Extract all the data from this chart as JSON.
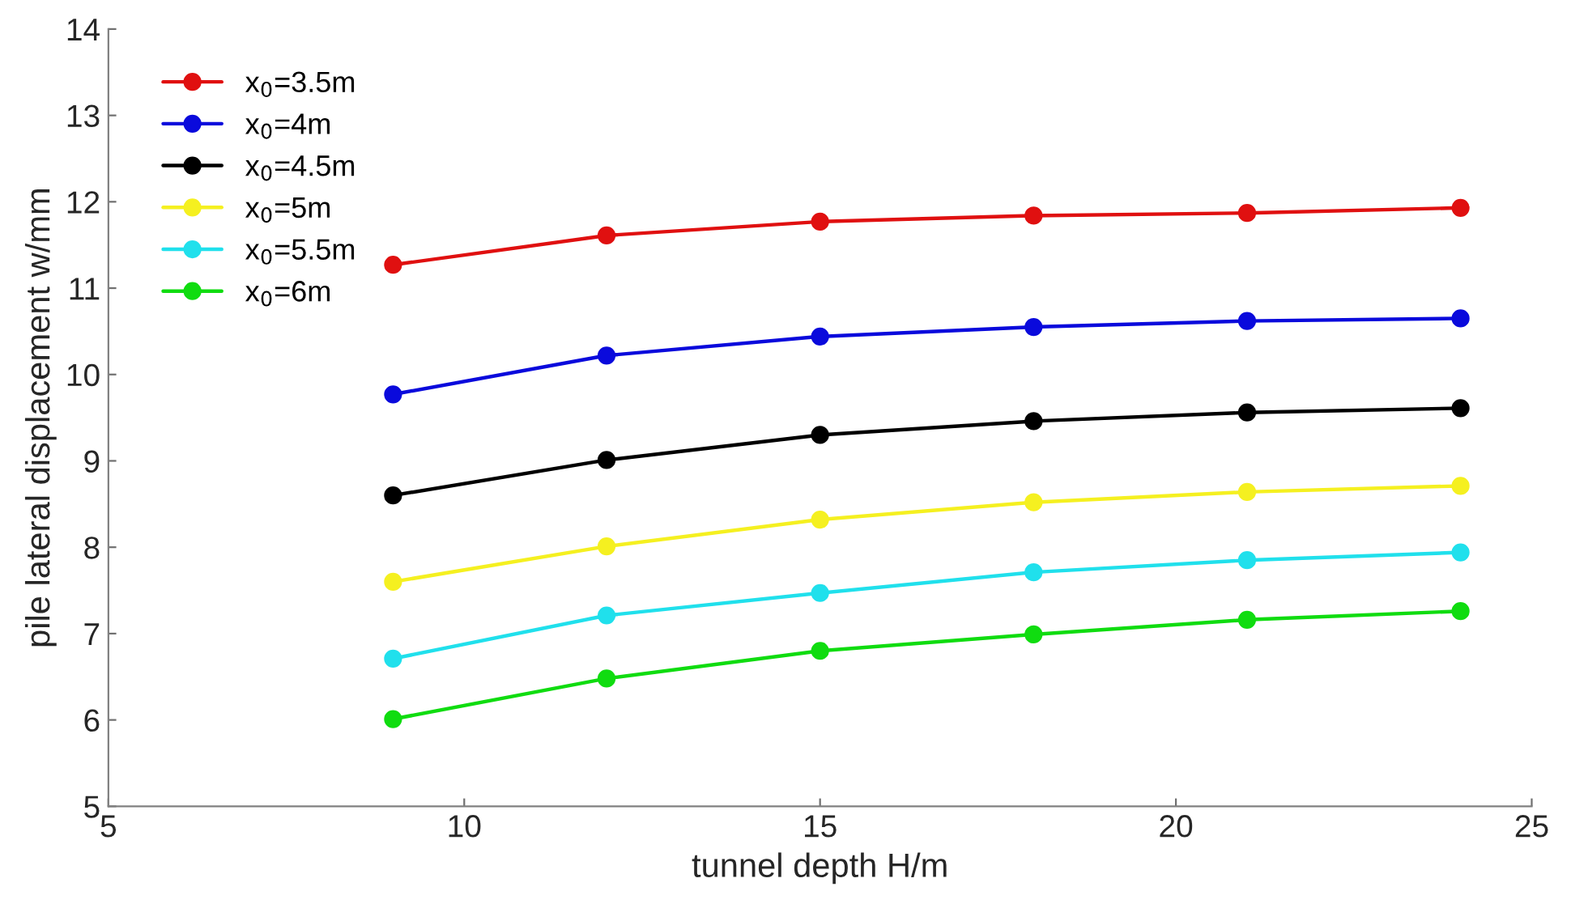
{
  "chart_data": {
    "type": "line",
    "xlabel": "tunnel depth H/m",
    "ylabel": "pile lateral displacement w/mm",
    "x": [
      9,
      12,
      15,
      18,
      21,
      24
    ],
    "series": [
      {
        "name": "x$_{0}$=3.5m",
        "color": "#e01010",
        "values": [
          11.27,
          11.61,
          11.77,
          11.84,
          11.87,
          11.93
        ]
      },
      {
        "name": "x$_{0}$=4m",
        "color": "#0a0adc",
        "values": [
          9.77,
          10.22,
          10.44,
          10.55,
          10.62,
          10.65
        ]
      },
      {
        "name": "x$_{0}$=4.5m",
        "color": "#000000",
        "values": [
          8.6,
          9.01,
          9.3,
          9.46,
          9.56,
          9.61
        ]
      },
      {
        "name": "x$_{0}$=5m",
        "color": "#f5f020",
        "values": [
          7.6,
          8.01,
          8.32,
          8.52,
          8.64,
          8.71
        ]
      },
      {
        "name": "x$_{0}$=5.5m",
        "color": "#20e0ec",
        "values": [
          6.71,
          7.21,
          7.47,
          7.71,
          7.85,
          7.94
        ]
      },
      {
        "name": "x$_{0}$=6m",
        "color": "#10dc10",
        "values": [
          6.01,
          6.48,
          6.8,
          6.99,
          7.16,
          7.26
        ]
      }
    ],
    "xlim": [
      5,
      25
    ],
    "xticks": [
      5,
      10,
      15,
      20,
      25
    ],
    "ylim": [
      5,
      14
    ],
    "yticks": [
      5,
      6,
      7,
      8,
      9,
      10,
      11,
      12,
      13,
      14
    ],
    "grid": false,
    "legend": "top left",
    "marker": "circle",
    "line_style": "solid"
  }
}
